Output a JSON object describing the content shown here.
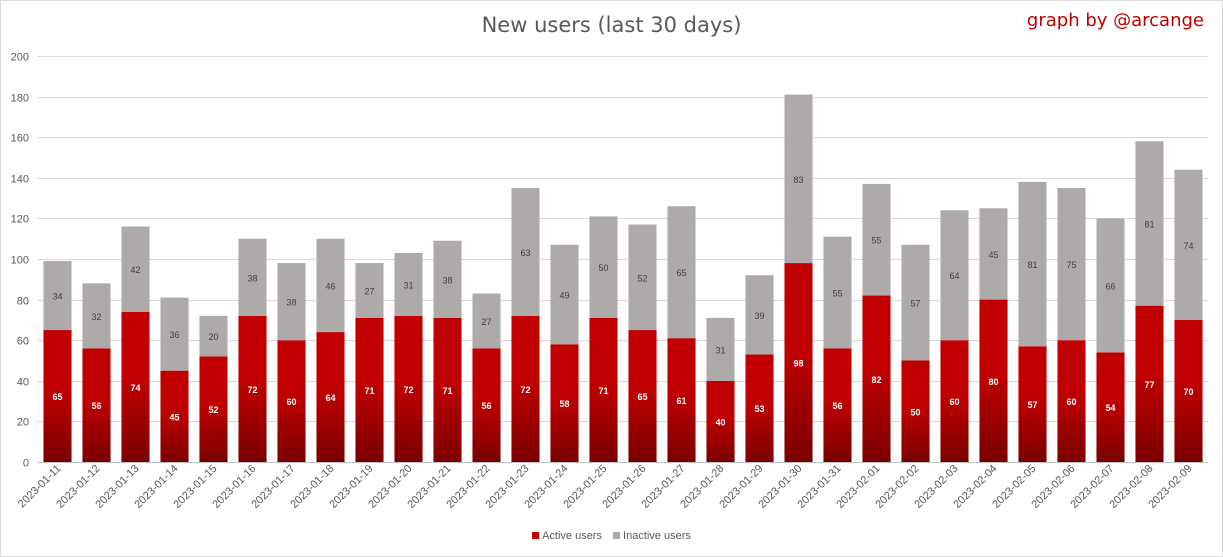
{
  "chart_data": {
    "type": "bar",
    "stacked": true,
    "title": "New users (last 30 days)",
    "credit": "graph by @arcange",
    "xlabel": "",
    "ylabel": "",
    "ylim": [
      0,
      200
    ],
    "yticks": [
      0,
      20,
      40,
      60,
      80,
      100,
      120,
      140,
      160,
      180,
      200
    ],
    "grid": true,
    "legend_position": "bottom",
    "categories": [
      "2023-01-11",
      "2023-01-12",
      "2023-01-13",
      "2023-01-14",
      "2023-01-15",
      "2023-01-16",
      "2023-01-17",
      "2023-01-18",
      "2023-01-19",
      "2023-01-20",
      "2023-01-21",
      "2023-01-22",
      "2023-01-23",
      "2023-01-24",
      "2023-01-25",
      "2023-01-26",
      "2023-01-27",
      "2023-01-28",
      "2023-01-29",
      "2023-01-30",
      "2023-01-31",
      "2023-02-01",
      "2023-02-02",
      "2023-02-03",
      "2023-02-04",
      "2023-02-05",
      "2023-02-06",
      "2023-02-07",
      "2023-02-08",
      "2023-02-09"
    ],
    "series": [
      {
        "name": "Active users",
        "color": "#c00000",
        "color_dark": "#7a0000",
        "values": [
          65,
          56,
          74,
          45,
          52,
          72,
          60,
          64,
          71,
          72,
          71,
          56,
          72,
          58,
          71,
          65,
          61,
          40,
          53,
          98,
          56,
          82,
          50,
          60,
          80,
          57,
          60,
          54,
          77,
          70
        ]
      },
      {
        "name": "Inactive users",
        "color": "#aeaaaa",
        "values": [
          34,
          32,
          42,
          36,
          20,
          38,
          38,
          46,
          27,
          31,
          38,
          27,
          63,
          49,
          50,
          52,
          65,
          31,
          39,
          83,
          55,
          55,
          57,
          64,
          45,
          81,
          75,
          66,
          81,
          74
        ]
      }
    ]
  }
}
